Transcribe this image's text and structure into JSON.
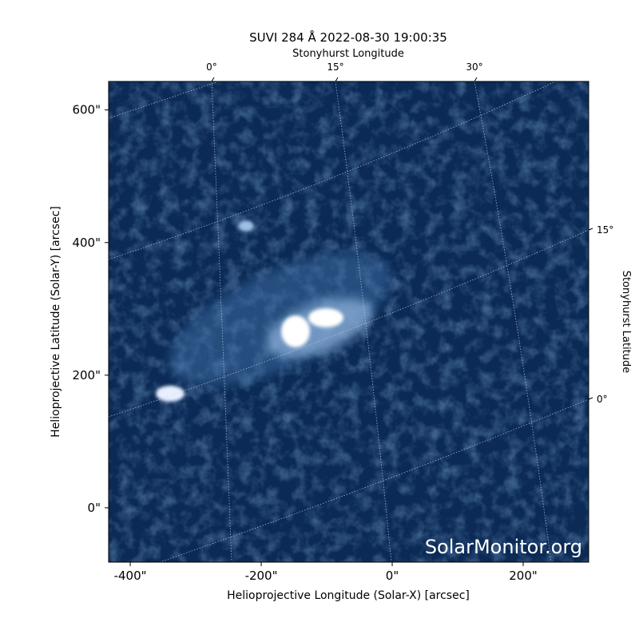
{
  "chart_data": {
    "type": "image",
    "title": "SUVI 284 Å 2022-08-30 19:00:35",
    "x_label": "Helioprojective Longitude (Solar-X) [arcsec]",
    "y_label": "Helioprojective Latitude (Solar-Y) [arcsec]",
    "xlim": [
      -433,
      300
    ],
    "ylim": [
      -82,
      643
    ],
    "xticks": [
      {
        "value": -400,
        "label": "-400\""
      },
      {
        "value": -200,
        "label": "-200\""
      },
      {
        "value": 0,
        "label": "0\""
      },
      {
        "value": 200,
        "label": "200\""
      }
    ],
    "yticks": [
      {
        "value": 0,
        "label": "0\""
      },
      {
        "value": 200,
        "label": "200\""
      },
      {
        "value": 400,
        "label": "400\""
      },
      {
        "value": 600,
        "label": "600\""
      }
    ],
    "top_axis": {
      "label": "Stonyhurst Longitude",
      "ticks": [
        {
          "value": 0,
          "label": "0°"
        },
        {
          "value": 15,
          "label": "15°"
        },
        {
          "value": 30,
          "label": "30°"
        }
      ]
    },
    "right_axis": {
      "label": "Stonyhurst Latitude",
      "ticks": [
        {
          "value": 15,
          "label": "15°"
        },
        {
          "value": 0,
          "label": "0°"
        }
      ]
    },
    "watermark": "SolarMonitor.org"
  }
}
